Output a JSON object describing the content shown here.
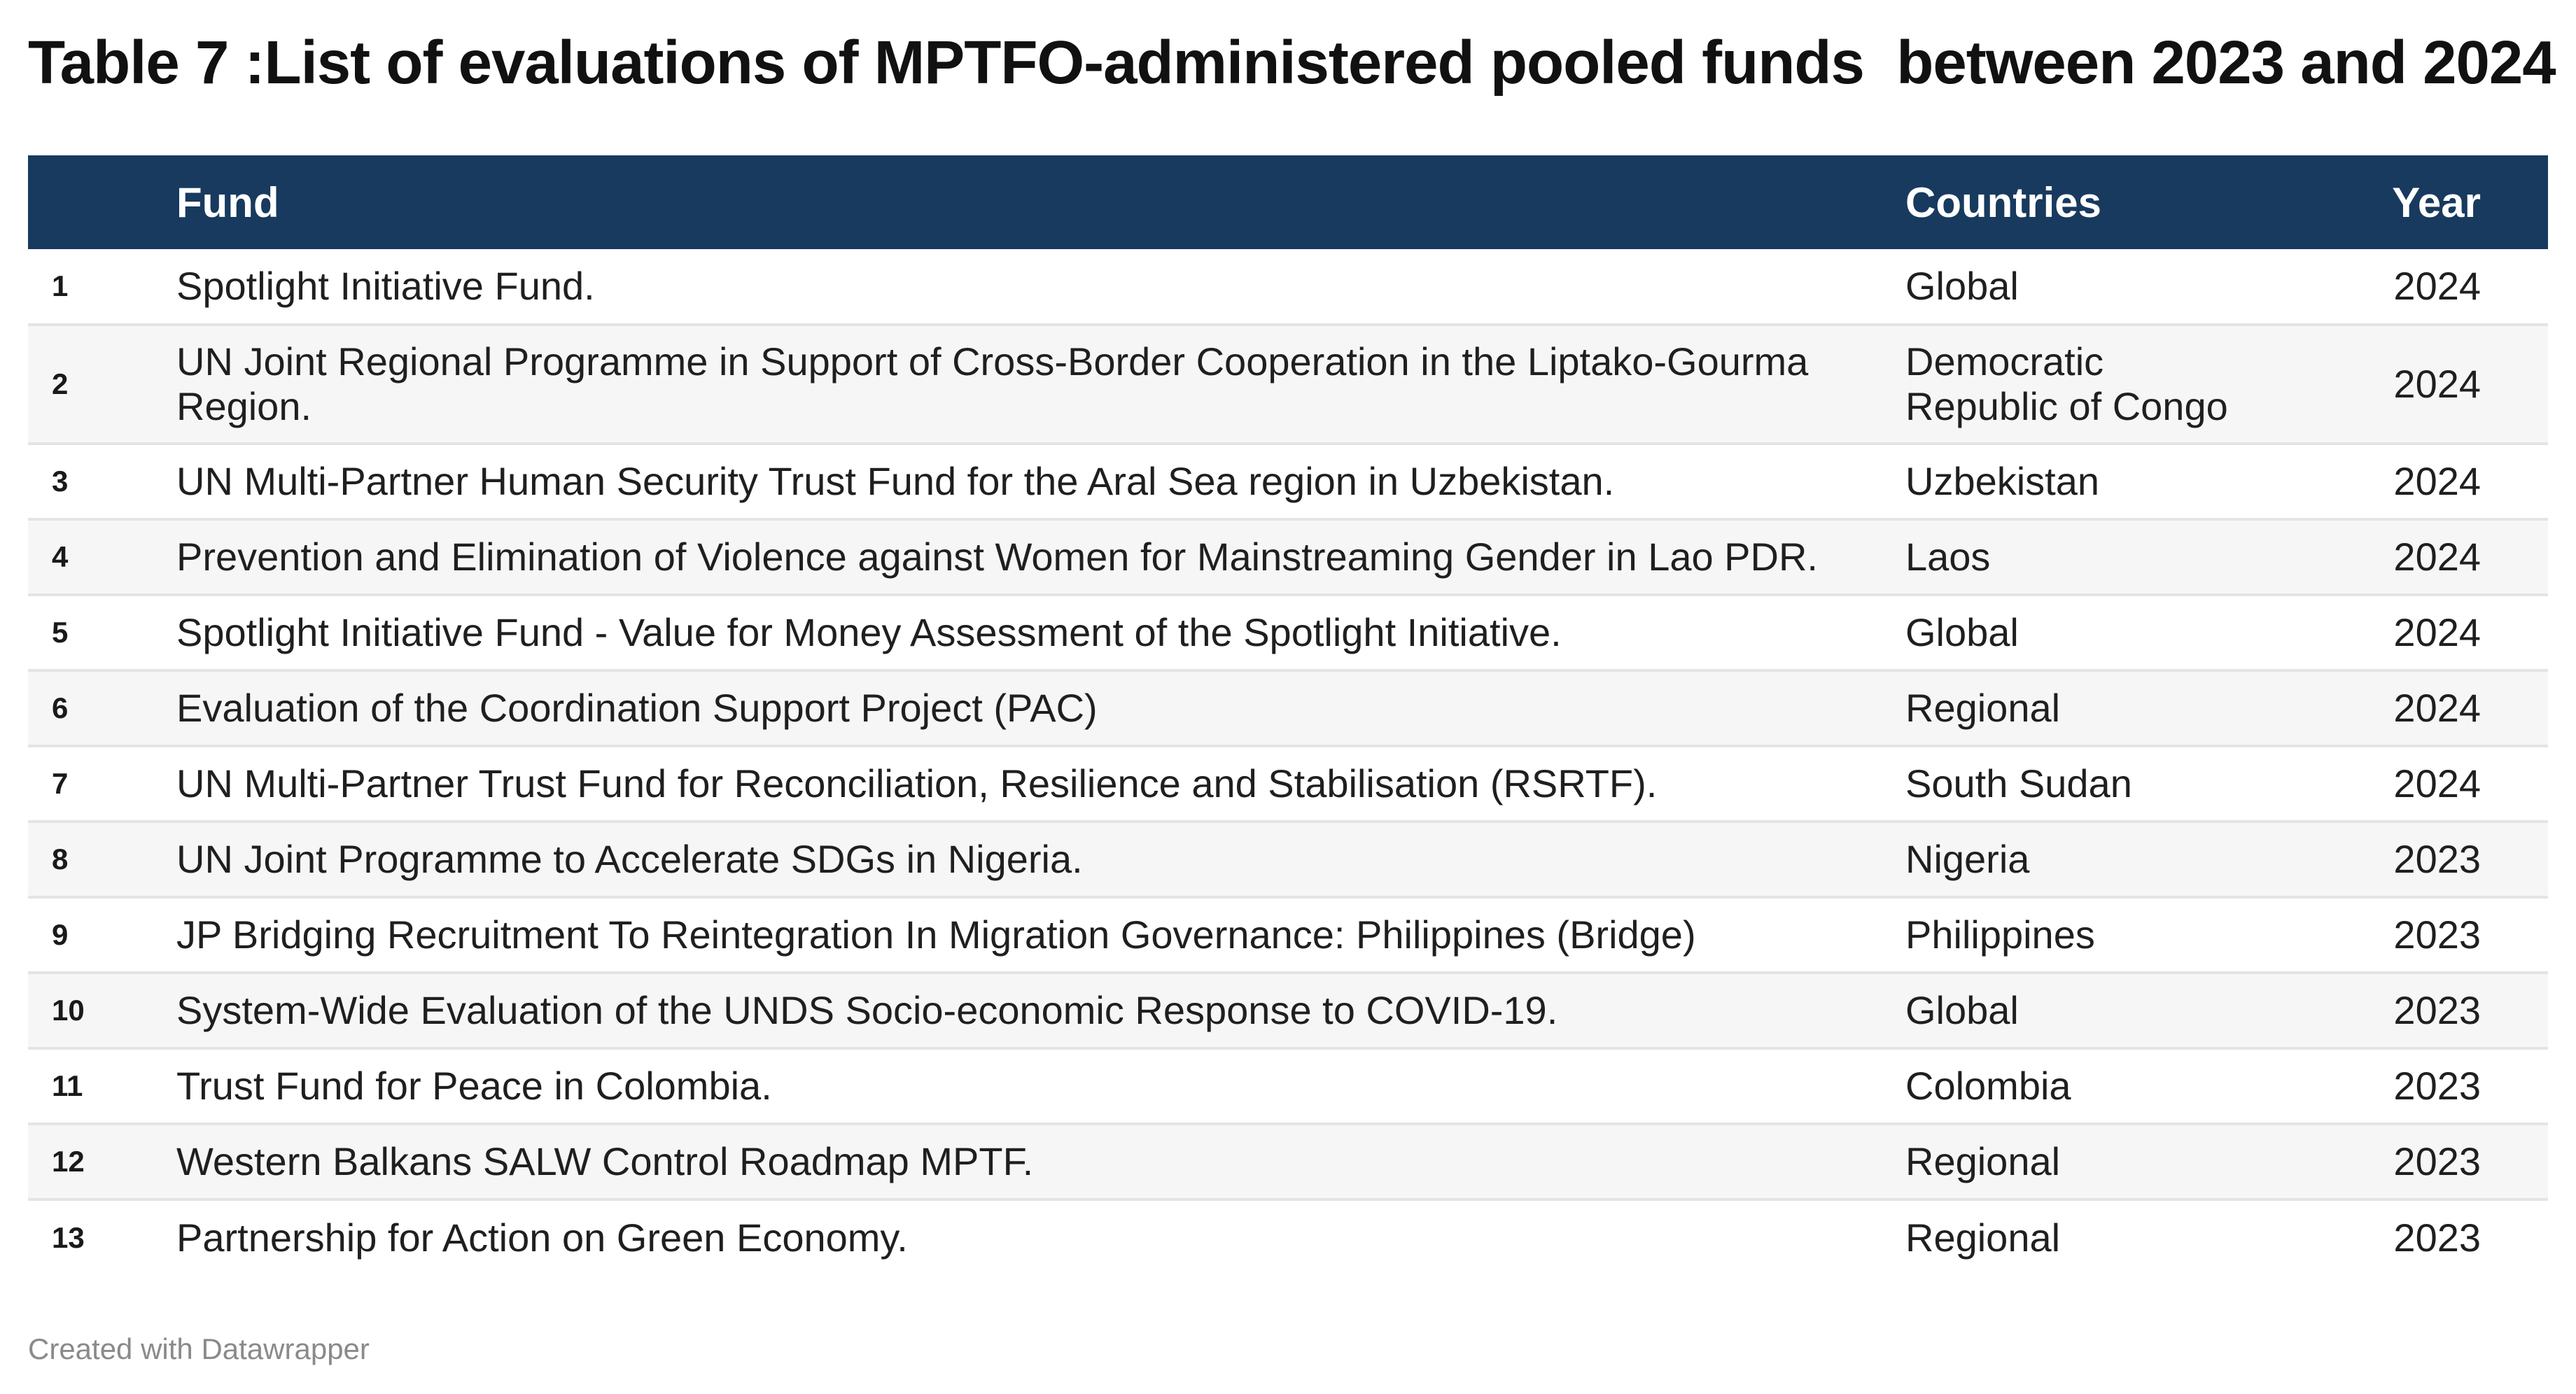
{
  "chart_data": {
    "type": "table",
    "title": "Table 7 :List of evaluations of MPTFO-administered pooled funds  between 2023 and 2024",
    "columns": [
      "",
      "Fund",
      "Countries",
      "Year"
    ],
    "rows": [
      {
        "num": "1",
        "fund": "Spotlight Initiative Fund.",
        "country": "Global",
        "year": "2024"
      },
      {
        "num": "2",
        "fund": "UN Joint Regional Programme in Support of Cross-Border Cooperation in the Liptako-Gourma Region.",
        "country": "Democratic Republic of Congo",
        "year": "2024"
      },
      {
        "num": "3",
        "fund": "UN Multi-Partner Human Security Trust Fund for the Aral Sea region in Uzbekistan.",
        "country": "Uzbekistan",
        "year": "2024"
      },
      {
        "num": "4",
        "fund": "Prevention and Elimination of Violence against Women for Mainstreaming Gender in Lao PDR.",
        "country": "Laos",
        "year": "2024"
      },
      {
        "num": "5",
        "fund": "Spotlight Initiative Fund - Value for Money Assessment of the Spotlight Initiative.",
        "country": "Global",
        "year": "2024"
      },
      {
        "num": "6",
        "fund": "Evaluation of the Coordination Support Project (PAC)",
        "country": "Regional",
        "year": "2024"
      },
      {
        "num": "7",
        "fund": "UN Multi-Partner Trust Fund for Reconciliation, Resilience and Stabilisation (RSRTF).",
        "country": "South Sudan",
        "year": "2024"
      },
      {
        "num": "8",
        "fund": "UN Joint Programme to Accelerate SDGs in Nigeria.",
        "country": "Nigeria",
        "year": "2023"
      },
      {
        "num": "9",
        "fund": "JP Bridging Recruitment To Reintegration In Migration Governance: Philippines (Bridge)",
        "country": "Philippines",
        "year": "2023"
      },
      {
        "num": "10",
        "fund": "System-Wide Evaluation of the UNDS Socio-economic Response to COVID-19.",
        "country": "Global",
        "year": "2023"
      },
      {
        "num": "11",
        "fund": "Trust Fund for Peace in Colombia.",
        "country": "Colombia",
        "year": "2023"
      },
      {
        "num": "12",
        "fund": "Western Balkans SALW Control Roadmap MPTF.",
        "country": "Regional",
        "year": "2023"
      },
      {
        "num": "13",
        "fund": "Partnership for Action on Green Economy.",
        "country": "Regional",
        "year": "2023"
      }
    ]
  },
  "footer": "Created with Datawrapper",
  "colors": {
    "header_bg": "#173a5e",
    "header_text": "#ffffff",
    "row_alt": "#f6f6f6",
    "divider": "#e4e4e4",
    "footer_text": "#8a8a8a"
  }
}
